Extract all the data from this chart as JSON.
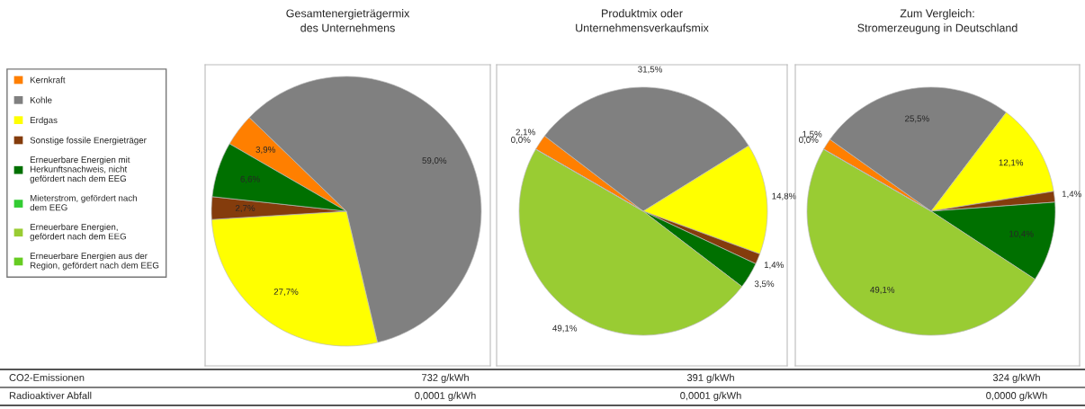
{
  "chart_data": [
    {
      "type": "pie",
      "title": "Gesamtenergieträgermix\ndes Unternehmens",
      "categories": [
        "Kernkraft",
        "Kohle",
        "Erdgas",
        "Sonstige fossile Energieträger",
        "Erneuerbare Energien mit Herkunftsnachweis, nicht gefördert nach dem EEG",
        "Mieterstrom, gefördert nach dem EEG",
        "Erneuerbare Energien, gefördert nach dem EEG",
        "Erneuerbare Energien aus der Region, gefördert nach dem EEG"
      ],
      "values": [
        3.9,
        59.0,
        27.7,
        2.7,
        6.6,
        null,
        null,
        null
      ],
      "value_labels": [
        "3,9%",
        "59,0%",
        "27,7%",
        "2,7%",
        "6,6%",
        null,
        null,
        null
      ],
      "colors": [
        "#ff7f00",
        "#808080",
        "#ffff00",
        "#843c0c",
        "#007000",
        "#33cc33",
        "#99cc33",
        "#66cc22"
      ],
      "legend": "left",
      "annotations": [
        "CO2-Emissionen",
        "Radioaktiver Abfall",
        "732 g/kWh",
        "0,0001 g/kWh"
      ]
    },
    {
      "type": "pie",
      "title": "Produktmix oder\nUnternehmensverkaufsmix",
      "values": [
        2.1,
        31.5,
        14.8,
        1.4,
        3.5,
        null,
        49.1,
        0.0
      ],
      "value_labels": [
        "2,1%",
        "31,5%",
        "14,8%",
        "1,4%",
        "3,5%",
        null,
        "49,1%",
        "0,0%"
      ],
      "colors": [
        "#ff7f00",
        "#808080",
        "#ffff00",
        "#843c0c",
        "#007000",
        "#33cc33",
        "#99cc33",
        "#66cc22"
      ],
      "annotations": [
        "391 g/kWh",
        "0,0001 g/kWh"
      ]
    },
    {
      "type": "pie",
      "title": "Zum Vergleich:\nStromerzeugung in Deutschland",
      "values": [
        1.5,
        25.5,
        12.1,
        1.4,
        10.4,
        null,
        49.1,
        0.0
      ],
      "value_labels": [
        "1,5%",
        "25,5%",
        "12,1%",
        "1,4%",
        "10,4%",
        null,
        "49,1%",
        "0,0%"
      ],
      "colors": [
        "#ff7f00",
        "#808080",
        "#ffff00",
        "#843c0c",
        "#007000",
        "#33cc33",
        "#99cc33",
        "#66cc22"
      ],
      "annotations": [
        "324 g/kWh",
        "0,0000 g/kWh"
      ]
    }
  ]
}
